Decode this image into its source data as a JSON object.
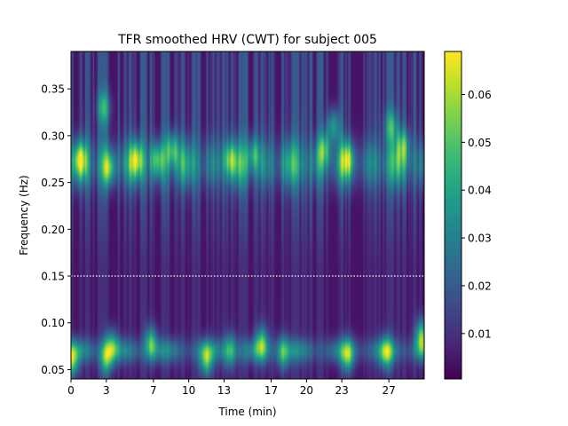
{
  "chart_data": {
    "type": "heatmap",
    "title": "TFR smoothed HRV (CWT) for subject 005",
    "xlabel": "Time (min)",
    "ylabel": "Frequency (Hz)",
    "xlim": [
      0,
      30.0
    ],
    "ylim": [
      0.04,
      0.39
    ],
    "x_ticks": [
      0,
      3,
      7,
      10,
      13,
      17,
      20,
      23,
      27
    ],
    "x_tick_labels": [
      "0",
      "3",
      "7",
      "10",
      "13",
      "17",
      "20",
      "23",
      "27"
    ],
    "y_ticks": [
      0.05,
      0.1,
      0.15,
      0.2,
      0.25,
      0.3,
      0.35
    ],
    "y_tick_labels": [
      "0.05",
      "0.10",
      "0.15",
      "0.20",
      "0.25",
      "0.30",
      "0.35"
    ],
    "colormap": "viridis",
    "colorbar": {
      "min": 0.0005,
      "max": 0.069,
      "ticks": [
        0.01,
        0.02,
        0.03,
        0.04,
        0.05,
        0.06
      ],
      "tick_labels": [
        "0.01",
        "0.02",
        "0.03",
        "0.04",
        "0.05",
        "0.06"
      ]
    },
    "reference_line": {
      "frequency": 0.15,
      "style": "dotted",
      "color": "#ffffff"
    },
    "features": {
      "hf_band": {
        "center_freq": 0.27,
        "width": 0.025,
        "peak": 0.034
      },
      "hf_peaks": [
        {
          "time": 0.8,
          "freq": 0.275,
          "value": 0.04
        },
        {
          "time": 2.8,
          "freq": 0.33,
          "value": 0.038
        },
        {
          "time": 3.2,
          "freq": 0.265,
          "value": 0.042
        },
        {
          "time": 5.6,
          "freq": 0.275,
          "value": 0.04
        },
        {
          "time": 7.3,
          "freq": 0.275,
          "value": 0.036
        },
        {
          "time": 8.6,
          "freq": 0.285,
          "value": 0.042
        },
        {
          "time": 13.5,
          "freq": 0.275,
          "value": 0.034
        },
        {
          "time": 15.5,
          "freq": 0.28,
          "value": 0.032
        },
        {
          "time": 21.5,
          "freq": 0.285,
          "value": 0.04
        },
        {
          "time": 22.3,
          "freq": 0.31,
          "value": 0.042
        },
        {
          "time": 23.5,
          "freq": 0.275,
          "value": 0.036
        },
        {
          "time": 27.2,
          "freq": 0.31,
          "value": 0.038
        },
        {
          "time": 28.2,
          "freq": 0.29,
          "value": 0.036
        }
      ],
      "lf_band": {
        "center_freq": 0.07,
        "width": 0.013,
        "peak": 0.026
      },
      "lf_peaks": [
        {
          "time": 0.1,
          "freq": 0.06,
          "value": 0.06
        },
        {
          "time": 3.0,
          "freq": 0.062,
          "value": 0.05
        },
        {
          "time": 3.5,
          "freq": 0.075,
          "value": 0.042
        },
        {
          "time": 6.8,
          "freq": 0.078,
          "value": 0.05
        },
        {
          "time": 11.5,
          "freq": 0.06,
          "value": 0.052
        },
        {
          "time": 13.5,
          "freq": 0.07,
          "value": 0.042
        },
        {
          "time": 16.2,
          "freq": 0.078,
          "value": 0.05
        },
        {
          "time": 18.0,
          "freq": 0.068,
          "value": 0.042
        },
        {
          "time": 23.5,
          "freq": 0.065,
          "value": 0.052
        },
        {
          "time": 26.8,
          "freq": 0.068,
          "value": 0.048
        },
        {
          "time": 29.8,
          "freq": 0.085,
          "value": 0.062
        }
      ]
    }
  }
}
